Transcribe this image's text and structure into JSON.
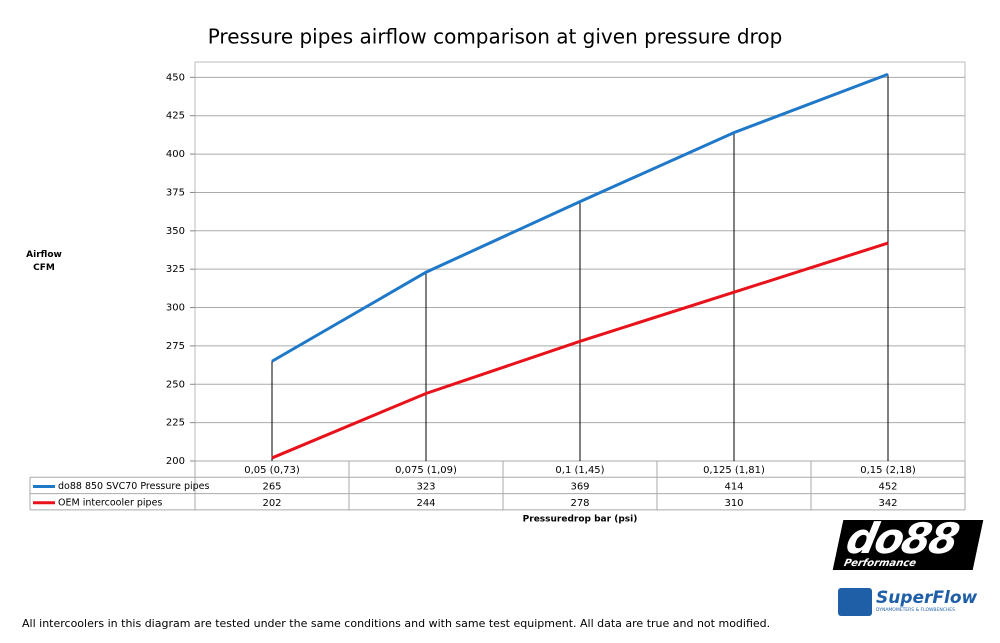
{
  "chart_data": {
    "type": "line",
    "title": "Pressure pipes airflow comparison at given pressure drop",
    "ylabel": "Airflow CFM",
    "xlabel": "Pressuredrop bar (psi)",
    "categories": [
      "0,05 (0,73)",
      "0,075 (1,09)",
      "0,1 (1,45)",
      "0,125 (1,81)",
      "0,15 (2,18)"
    ],
    "series": [
      {
        "name": "do88 850 SVC70 Pressure pipes",
        "color": "#1f78c8",
        "values": [
          265,
          323,
          369,
          414,
          452
        ]
      },
      {
        "name": "OEM intercooler pipes",
        "color": "#e8121b",
        "values": [
          202,
          244,
          278,
          310,
          342
        ]
      }
    ],
    "ylim": [
      200,
      460
    ],
    "yticks": [
      200,
      225,
      250,
      275,
      300,
      325,
      350,
      375,
      400,
      425,
      450
    ],
    "grid": true,
    "drop_lines": true,
    "note": "All intercoolers in this diagram are tested under the same conditions and with same test equipment. All data are true and not modified.",
    "logos": {
      "do88": "do88",
      "do88_sub": "Performance",
      "superflow": "SuperFlow",
      "superflow_sub": "DYNAMOMETERS & FLOWBENCHES"
    }
  }
}
